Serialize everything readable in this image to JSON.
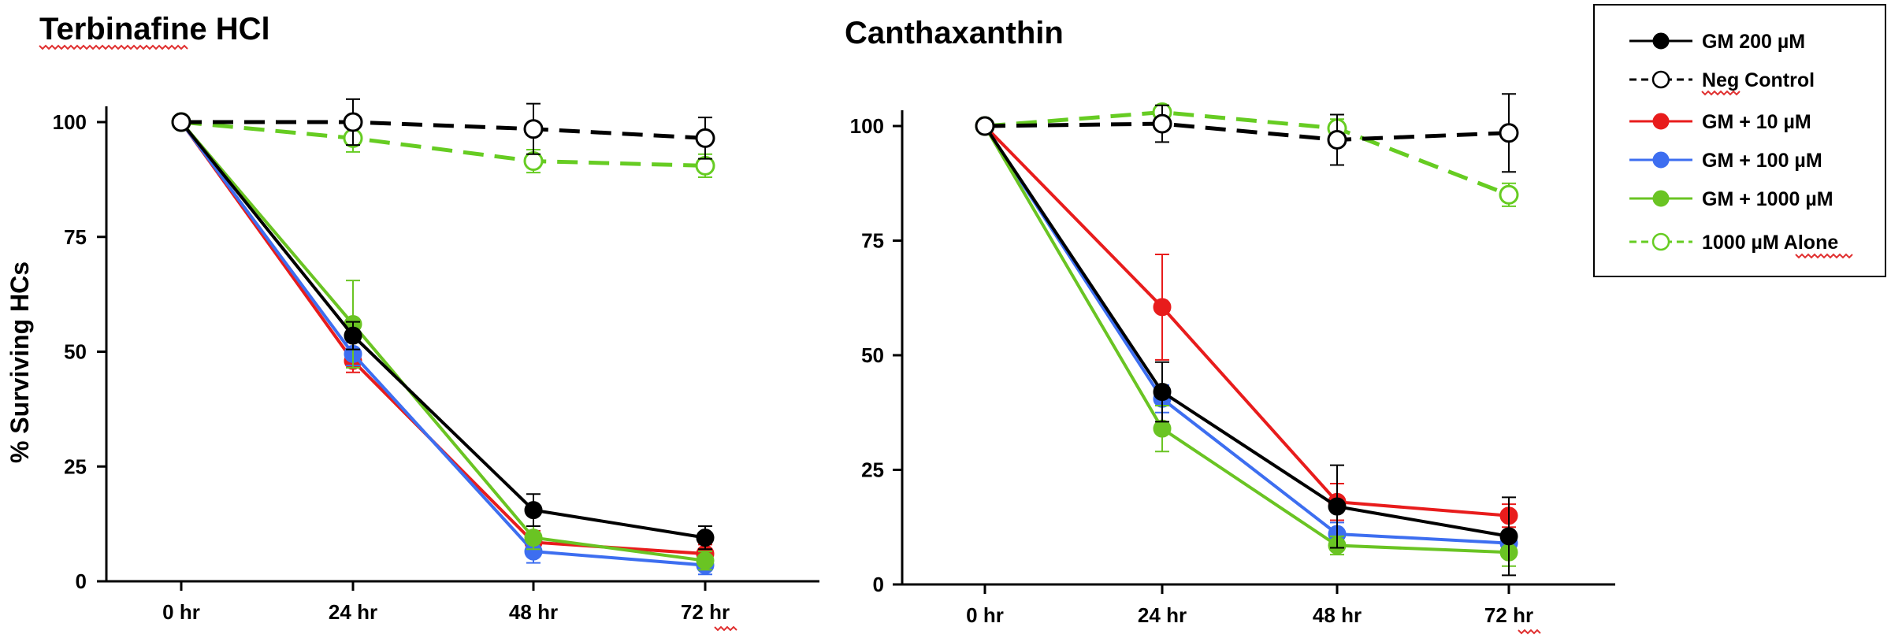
{
  "chart_data": [
    {
      "type": "line",
      "title": "Terbinafine HCl",
      "xlabel": "",
      "ylabel": "% Surviving HCs",
      "categories": [
        "0 hr",
        "24 hr",
        "48 hr",
        "72 hr"
      ],
      "ylim": [
        0,
        100
      ],
      "yticks": [
        0,
        25,
        50,
        75,
        100
      ],
      "series": [
        {
          "name": "Neg Control",
          "values": [
            100,
            100,
            98.5,
            96.5
          ],
          "errors": [
            0,
            5,
            5.5,
            4.5
          ]
        },
        {
          "name": "1000 µM Alone",
          "values": [
            100,
            96.5,
            91.5,
            90.5
          ],
          "errors": [
            0,
            3,
            2.5,
            2.5
          ]
        },
        {
          "name": "GM 200 µM",
          "values": [
            100,
            53.5,
            15.5,
            9.5
          ],
          "errors": [
            0,
            3,
            3.5,
            2.5
          ]
        },
        {
          "name": "GM + 10 µM",
          "values": [
            100,
            48,
            8.5,
            6
          ],
          "errors": [
            0,
            2.5,
            2.5,
            2
          ]
        },
        {
          "name": "GM + 100 µM",
          "values": [
            100,
            49.5,
            6.5,
            3.5
          ],
          "errors": [
            0,
            2.5,
            2.5,
            2
          ]
        },
        {
          "name": "GM + 1000 µM",
          "values": [
            100,
            56,
            9.5,
            4.5
          ],
          "errors": [
            0,
            9.5,
            2.5,
            2
          ]
        }
      ]
    },
    {
      "type": "line",
      "title": "Canthaxanthin",
      "xlabel": "",
      "ylabel": "",
      "categories": [
        "0 hr",
        "24 hr",
        "48 hr",
        "72 hr"
      ],
      "ylim": [
        0,
        100
      ],
      "yticks": [
        0,
        25,
        50,
        75,
        100
      ],
      "series": [
        {
          "name": "Neg Control",
          "values": [
            100,
            100.5,
            97,
            98.5
          ],
          "errors": [
            0,
            4,
            5.5,
            8.5
          ]
        },
        {
          "name": "1000 µM Alone",
          "values": [
            100,
            103,
            99.5,
            85
          ],
          "errors": [
            0,
            1.5,
            2,
            2.5
          ]
        },
        {
          "name": "GM 200 µM",
          "values": [
            100,
            42,
            17,
            10.5
          ],
          "errors": [
            0,
            6.5,
            9,
            8.5
          ]
        },
        {
          "name": "GM + 10 µM",
          "values": [
            100,
            60.5,
            18,
            15
          ],
          "errors": [
            0,
            11.5,
            4,
            2.5
          ]
        },
        {
          "name": "GM + 100 µM",
          "values": [
            100,
            40.5,
            11,
            9
          ],
          "errors": [
            0,
            3,
            2.5,
            2.5
          ]
        },
        {
          "name": "GM + 1000 µM",
          "values": [
            100,
            34,
            8.5,
            7
          ],
          "errors": [
            0,
            5,
            2,
            3
          ]
        }
      ]
    }
  ],
  "series_styles": [
    {
      "name": "Neg Control",
      "color": "#000000",
      "dashed": true,
      "filled": false
    },
    {
      "name": "1000 µM Alone",
      "color": "#66cc22",
      "dashed": true,
      "filled": false
    },
    {
      "name": "GM 200 µM",
      "color": "#000000",
      "dashed": false,
      "filled": true
    },
    {
      "name": "GM + 10 µM",
      "color": "#e81c1c",
      "dashed": false,
      "filled": true
    },
    {
      "name": "GM + 100 µM",
      "color": "#3d6ef0",
      "dashed": false,
      "filled": true
    },
    {
      "name": "GM + 1000 µM",
      "color": "#6ac423",
      "dashed": false,
      "filled": true
    }
  ],
  "legend": {
    "entries": [
      "GM 200 µM",
      "Neg Control",
      "GM + 10 µM",
      "GM + 100 µM",
      "GM + 1000 µM",
      "1000 µM Alone"
    ]
  }
}
